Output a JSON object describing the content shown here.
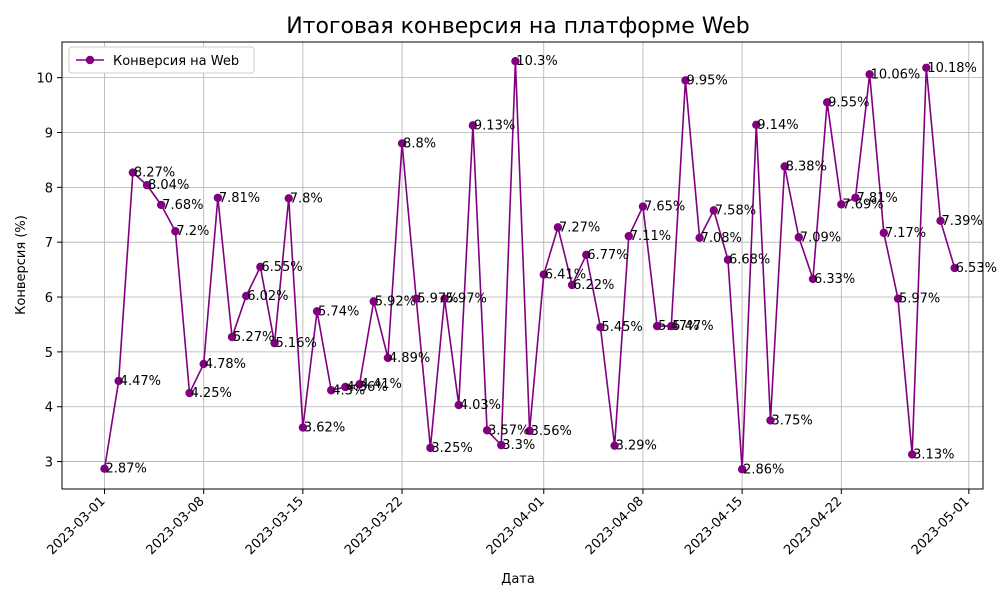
{
  "chart_data": {
    "type": "line",
    "title": "Итоговая конверсия на платформе Web",
    "xlabel": "Дата",
    "ylabel": "Конверсия (%)",
    "grid": true,
    "legend_position": "top-left",
    "x_ticks": [
      "2023-03-01",
      "2023-03-08",
      "2023-03-15",
      "2023-03-22",
      "2023-04-01",
      "2023-04-08",
      "2023-04-15",
      "2023-04-22",
      "2023-05-01"
    ],
    "y_ticks": [
      3,
      4,
      5,
      6,
      7,
      8,
      9,
      10
    ],
    "ylim": [
      2.5,
      10.65
    ],
    "xlim": [
      "2023-02-26",
      "2023-05-02"
    ],
    "series": [
      {
        "name": "Конверсия на Web",
        "color": "#800080",
        "x": [
          "2023-03-01",
          "2023-03-02",
          "2023-03-03",
          "2023-03-04",
          "2023-03-05",
          "2023-03-06",
          "2023-03-07",
          "2023-03-08",
          "2023-03-09",
          "2023-03-10",
          "2023-03-11",
          "2023-03-12",
          "2023-03-13",
          "2023-03-14",
          "2023-03-15",
          "2023-03-16",
          "2023-03-17",
          "2023-03-18",
          "2023-03-19",
          "2023-03-20",
          "2023-03-21",
          "2023-03-22",
          "2023-03-23",
          "2023-03-24",
          "2023-03-25",
          "2023-03-26",
          "2023-03-27",
          "2023-03-28",
          "2023-03-29",
          "2023-03-30",
          "2023-03-31",
          "2023-04-01",
          "2023-04-02",
          "2023-04-03",
          "2023-04-04",
          "2023-04-05",
          "2023-04-06",
          "2023-04-07",
          "2023-04-08",
          "2023-04-09",
          "2023-04-10",
          "2023-04-11",
          "2023-04-12",
          "2023-04-13",
          "2023-04-14",
          "2023-04-15",
          "2023-04-16",
          "2023-04-17",
          "2023-04-18",
          "2023-04-19",
          "2023-04-20",
          "2023-04-21",
          "2023-04-22",
          "2023-04-23",
          "2023-04-24",
          "2023-04-25",
          "2023-04-26",
          "2023-04-27",
          "2023-04-28",
          "2023-04-29",
          "2023-04-30"
        ],
        "values": [
          2.87,
          4.47,
          8.27,
          8.04,
          7.68,
          7.2,
          4.25,
          4.78,
          7.81,
          5.27,
          6.02,
          6.55,
          5.16,
          7.8,
          3.62,
          5.74,
          4.3,
          4.36,
          4.41,
          5.92,
          4.89,
          8.8,
          5.97,
          3.25,
          5.97,
          4.03,
          9.13,
          3.57,
          3.3,
          10.3,
          3.56,
          6.41,
          7.27,
          6.22,
          6.77,
          5.45,
          3.29,
          7.11,
          7.65,
          5.47,
          5.47,
          9.95,
          7.08,
          7.58,
          6.68,
          2.86,
          9.14,
          3.75,
          8.38,
          7.09,
          6.33,
          9.55,
          7.69,
          7.81,
          10.06,
          7.17,
          5.97,
          3.13,
          10.18,
          7.39,
          6.53
        ],
        "labels": [
          "2.87%",
          "4.47%",
          "8.27%",
          "8.04%",
          "7.68%",
          "7.2%",
          "4.25%",
          "4.78%",
          "7.81%",
          "5.27%",
          "6.02%",
          "6.55%",
          "5.16%",
          "7.8%",
          "3.62%",
          "5.74%",
          "4.3%",
          "4.36%",
          "4.41%",
          "5.92%",
          "4.89%",
          "8.8%",
          "5.97%",
          "3.25%",
          "5.97%",
          "4.03%",
          "9.13%",
          "3.57%",
          "3.3%",
          "10.3%",
          "3.56%",
          "6.41%",
          "7.27%",
          "6.22%",
          "6.77%",
          "5.45%",
          "3.29%",
          "7.11%",
          "7.65%",
          "5.47%",
          "5.47%",
          "9.95%",
          "7.08%",
          "7.58%",
          "6.68%",
          "2.86%",
          "9.14%",
          "3.75%",
          "8.38%",
          "7.09%",
          "6.33%",
          "9.55%",
          "7.69%",
          "7.81%",
          "10.06%",
          "7.17%",
          "5.97%",
          "3.13%",
          "10.18%",
          "7.39%",
          "6.53%"
        ]
      }
    ]
  }
}
